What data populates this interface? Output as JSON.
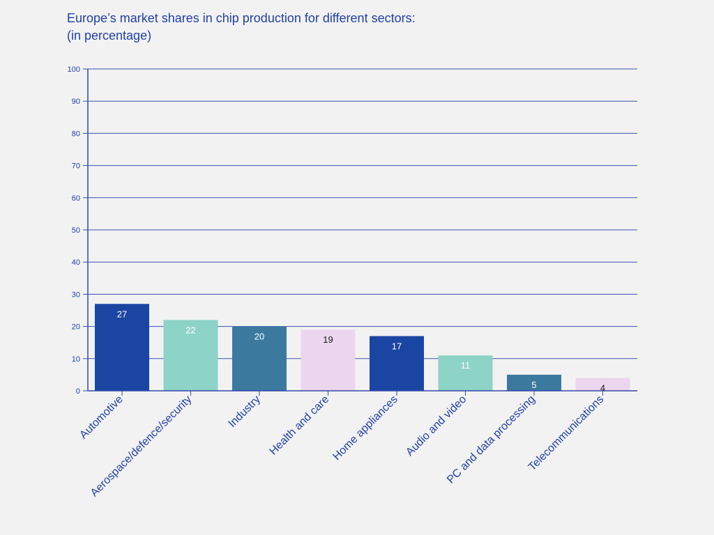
{
  "chart_data": {
    "type": "bar",
    "title": "Europe’s market shares in chip production for different sectors:",
    "subtitle": "(in percentage)",
    "xlabel": "",
    "ylabel": "",
    "ylim": [
      0,
      100
    ],
    "yticks": [
      0,
      10,
      20,
      30,
      40,
      50,
      60,
      70,
      80,
      90,
      100
    ],
    "grid": true,
    "categories": [
      "Automotive",
      "Aerospace/defence/security",
      "Industry",
      "Health and care",
      "Home appliances",
      "Audio and video",
      "PC and data processing",
      "Telecommunications"
    ],
    "values": [
      27,
      22,
      20,
      19,
      17,
      11,
      5,
      4
    ],
    "bar_colors": [
      "#1b45a3",
      "#8dd3c7",
      "#3b7a9e",
      "#ecd5ee",
      "#1b45a3",
      "#8dd3c7",
      "#3b7a9e",
      "#ecd5ee"
    ],
    "label_colors": [
      "#ffffff",
      "#ffffff",
      "#ffffff",
      "#1a1a1a",
      "#ffffff",
      "#ffffff",
      "#ffffff",
      "#1a1a1a"
    ],
    "axis_color": "#3346a8",
    "grid_color": "#3d52b0"
  }
}
